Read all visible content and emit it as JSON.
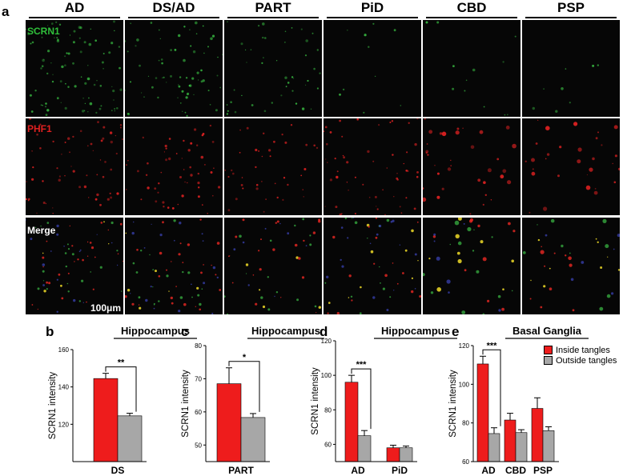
{
  "figure": {
    "panel_a": "a",
    "columns": [
      "AD",
      "DS/AD",
      "PART",
      "PiD",
      "CBD",
      "PSP"
    ],
    "rows": [
      {
        "label": "SCRN1",
        "color": "#2fbf3a"
      },
      {
        "label": "PHF1",
        "color": "#e02020"
      },
      {
        "label": "Merge",
        "color": "#ffffff"
      }
    ],
    "scalebar_label": "100μm"
  },
  "legend": {
    "inside_label": "Inside tangles",
    "outside_label": "Outside tangles",
    "inside_color": "#ee1c1c",
    "outside_color": "#a7a7a7"
  },
  "chart_data": [
    {
      "panel": "b",
      "type": "bar",
      "title": "Hippocampus",
      "ylabel": "SCRN1 intensity",
      "ylim": [
        100,
        160
      ],
      "yticks": [
        120,
        140,
        160
      ],
      "categories": [
        "DS"
      ],
      "series": [
        {
          "name": "Inside tangles",
          "values": [
            144.5
          ],
          "errors": [
            2.8
          ]
        },
        {
          "name": "Outside tangles",
          "values": [
            124.5
          ],
          "errors": [
            1.4
          ]
        }
      ],
      "significance": [
        {
          "category": "DS",
          "label": "**"
        }
      ]
    },
    {
      "panel": "c",
      "type": "bar",
      "title": "Hippocampus",
      "ylabel": "SCRN1 intensity",
      "ylim": [
        45,
        80
      ],
      "yticks": [
        50,
        60,
        70,
        80
      ],
      "categories": [
        "PART"
      ],
      "series": [
        {
          "name": "Inside tangles",
          "values": [
            68.5
          ],
          "errors": [
            4.8
          ]
        },
        {
          "name": "Outside tangles",
          "values": [
            58.3
          ],
          "errors": [
            1.2
          ]
        }
      ],
      "significance": [
        {
          "category": "PART",
          "label": "*"
        }
      ]
    },
    {
      "panel": "d",
      "type": "bar",
      "title": "Hippocampus",
      "ylabel": "SCRN1 intensity",
      "ylim": [
        50,
        120
      ],
      "yticks": [
        60,
        80,
        100,
        120
      ],
      "categories": [
        "AD",
        "PiD"
      ],
      "series": [
        {
          "name": "Inside tangles",
          "values": [
            96,
            58
          ],
          "errors": [
            4,
            1.5
          ]
        },
        {
          "name": "Outside tangles",
          "values": [
            65,
            58
          ],
          "errors": [
            3,
            1
          ]
        }
      ],
      "significance": [
        {
          "category": "AD",
          "label": "***"
        }
      ]
    },
    {
      "panel": "e",
      "type": "bar",
      "title": "Basal   Ganglia",
      "ylabel": "SCRN1 intensity",
      "ylim": [
        60,
        120
      ],
      "yticks": [
        60,
        80,
        100,
        120
      ],
      "categories": [
        "AD",
        "CBD",
        "PSP"
      ],
      "series": [
        {
          "name": "Inside tangles",
          "values": [
            110.5,
            81.5,
            87.5
          ],
          "errors": [
            4,
            3.5,
            5.5
          ]
        },
        {
          "name": "Outside tangles",
          "values": [
            74.5,
            75,
            76
          ],
          "errors": [
            3,
            1.5,
            2
          ]
        }
      ],
      "significance": [
        {
          "category": "AD",
          "label": "***"
        }
      ]
    }
  ]
}
